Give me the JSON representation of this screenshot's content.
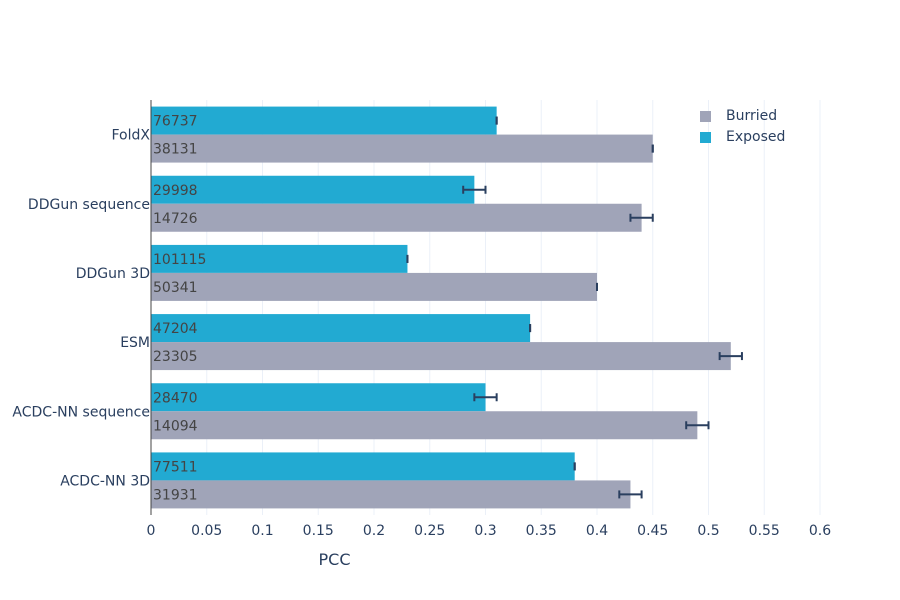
{
  "chart_data": {
    "type": "bar",
    "orientation": "horizontal",
    "title": "",
    "xlabel": "PCC",
    "ylabel": "",
    "xlim": [
      0,
      0.6
    ],
    "xticks": [
      0,
      0.05,
      0.1,
      0.15,
      0.2,
      0.25,
      0.3,
      0.35,
      0.4,
      0.45,
      0.5,
      0.55,
      0.6
    ],
    "xtick_labels": [
      "0",
      "0.05",
      "0.1",
      "0.15",
      "0.2",
      "0.25",
      "0.3",
      "0.35",
      "0.4",
      "0.45",
      "0.5",
      "0.55",
      "0.6"
    ],
    "grid": true,
    "legend_position": "top-right",
    "categories": [
      "FoldX",
      "DDGun sequence",
      "DDGun 3D",
      "ESM",
      "ACDC-NN sequence",
      "ACDC-NN 3D"
    ],
    "series": [
      {
        "name": "Burried",
        "color": "#a0a4b8",
        "values": [
          0.45,
          0.44,
          0.4,
          0.52,
          0.49,
          0.43
        ],
        "errors": [
          0.0,
          0.01,
          0.0,
          0.01,
          0.01,
          0.01
        ],
        "bar_labels": [
          "38131",
          "14726",
          "50341",
          "23305",
          "14094",
          "31931"
        ]
      },
      {
        "name": "Exposed",
        "color": "#22aad2",
        "values": [
          0.31,
          0.29,
          0.23,
          0.34,
          0.3,
          0.38
        ],
        "errors": [
          0.0,
          0.01,
          0.0,
          0.0,
          0.01,
          0.0
        ],
        "bar_labels": [
          "76737",
          "29998",
          "101115",
          "47204",
          "28470",
          "77511"
        ]
      }
    ],
    "colors": {
      "text": "#2a3f5f",
      "label_text": "#444444",
      "grid": "#ebf0f8",
      "axis": "#444444",
      "error_bar": "#2a3f5f"
    }
  },
  "legend": {
    "items": [
      {
        "label": "Burried",
        "color": "#a0a4b8"
      },
      {
        "label": "Exposed",
        "color": "#22aad2"
      }
    ]
  }
}
